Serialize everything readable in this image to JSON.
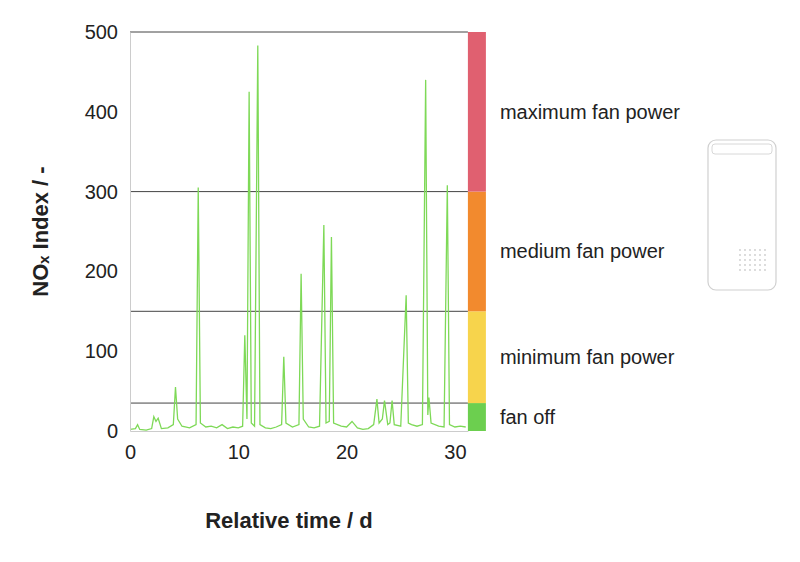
{
  "chart_data": {
    "type": "line",
    "x_label": "Relative time / d",
    "y_label": "NOₓ Index / -",
    "x": [
      0,
      0.5,
      0.7,
      0.9,
      1.5,
      2.0,
      2.2,
      2.4,
      2.6,
      2.9,
      3.5,
      4.0,
      4.2,
      4.4,
      4.8,
      5.5,
      6.1,
      6.3,
      6.5,
      7.0,
      7.5,
      8.0,
      8.5,
      9.0,
      9.5,
      10.0,
      10.4,
      10.6,
      10.8,
      11.0,
      11.2,
      11.5,
      11.8,
      12.0,
      12.5,
      13.0,
      13.5,
      14.0,
      14.2,
      14.4,
      15.0,
      15.6,
      15.8,
      16.0,
      16.5,
      17.0,
      17.5,
      17.9,
      18.1,
      18.4,
      18.6,
      18.8,
      19.5,
      20.0,
      20.5,
      21.0,
      21.5,
      22.0,
      22.5,
      22.8,
      23.0,
      23.3,
      23.5,
      23.8,
      24.0,
      24.2,
      24.4,
      25.0,
      25.3,
      25.5,
      25.7,
      26.0,
      26.5,
      27.0,
      27.3,
      27.5,
      27.6,
      27.8,
      28.5,
      29.0,
      29.3,
      29.5,
      30.0,
      30.5,
      31.0
    ],
    "values": [
      2,
      3,
      8,
      2,
      1,
      3,
      18,
      12,
      16,
      3,
      4,
      8,
      55,
      15,
      6,
      4,
      8,
      305,
      10,
      5,
      6,
      4,
      8,
      3,
      5,
      4,
      6,
      120,
      15,
      425,
      10,
      6,
      483,
      8,
      4,
      3,
      5,
      8,
      93,
      10,
      5,
      8,
      197,
      15,
      5,
      4,
      6,
      258,
      10,
      12,
      243,
      10,
      6,
      5,
      12,
      4,
      2,
      3,
      8,
      40,
      10,
      15,
      38,
      8,
      10,
      38,
      8,
      6,
      105,
      170,
      10,
      8,
      6,
      8,
      440,
      20,
      42,
      10,
      6,
      5,
      308,
      8,
      5,
      6,
      5
    ],
    "color": "#7ed957",
    "xlim": [
      0,
      31.2
    ],
    "ylim": [
      0,
      500
    ],
    "xticks": [
      0,
      10,
      20,
      30
    ],
    "yticks": [
      0,
      100,
      200,
      300,
      400,
      500
    ],
    "grid": false,
    "zones": [
      {
        "label": "fan off",
        "from": 0,
        "to": 35,
        "color": "#6ccf4f"
      },
      {
        "label": "minimum fan power",
        "from": 35,
        "to": 150,
        "color": "#f7d44c"
      },
      {
        "label": "medium fan power",
        "from": 150,
        "to": 300,
        "color": "#f28a2e"
      },
      {
        "label": "maximum fan power",
        "from": 300,
        "to": 500,
        "color": "#e06070"
      }
    ]
  }
}
